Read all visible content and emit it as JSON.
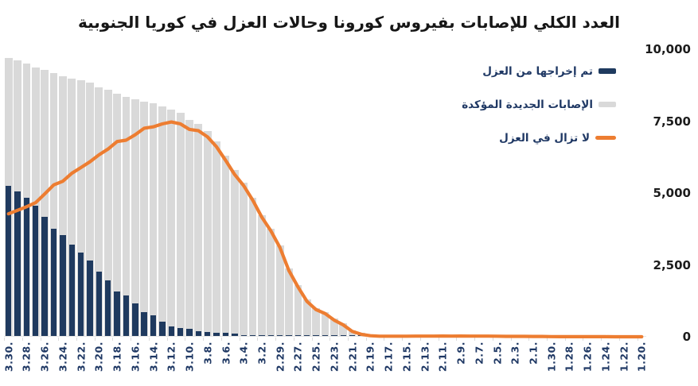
{
  "chart_data": {
    "type": "bar",
    "combo_note": "overlapped cumulative bars + line, x axis runs newest (left) to oldest (right)",
    "title": "العدد الكلي للإصابات بفيروس كورونا وحالات العزل في كوريا الجنوبية",
    "xlabel": "",
    "ylabel": "",
    "ylim": [
      0,
      10000
    ],
    "grid": false,
    "legend_position": "top-right",
    "xtick_every": 2,
    "yticks": [
      {
        "label": "10,000",
        "value": 10000
      },
      {
        "label": "7,500",
        "value": 7500
      },
      {
        "label": "5,000",
        "value": 5000
      },
      {
        "label": "2,500",
        "value": 2500
      },
      {
        "label": "0",
        "value": 0
      }
    ],
    "x": [
      "3.30.",
      "3.29.",
      "3.28.",
      "3.27.",
      "3.26.",
      "3.25.",
      "3.24.",
      "3.23.",
      "3.22.",
      "3.21.",
      "3.20.",
      "3.19.",
      "3.18.",
      "3.17.",
      "3.16.",
      "3.15.",
      "3.14.",
      "3.13.",
      "3.12.",
      "3.11.",
      "3.10.",
      "3.9.",
      "3.8.",
      "3.7.",
      "3.6.",
      "3.5.",
      "3.4.",
      "3.3.",
      "3.2.",
      "3.1.",
      "2.29.",
      "2.28.",
      "2.27.",
      "2.26.",
      "2.25.",
      "2.24.",
      "2.23.",
      "2.22.",
      "2.21.",
      "2.20.",
      "2.19.",
      "2.18.",
      "2.17.",
      "2.16.",
      "2.15.",
      "2.14.",
      "2.13.",
      "2.12.",
      "2.11.",
      "2.10.",
      "2.9.",
      "2.8.",
      "2.7.",
      "2.6.",
      "2.5.",
      "2.4.",
      "2.3.",
      "2.2.",
      "2.1.",
      "1.31.",
      "1.30.",
      "1.29.",
      "1.28.",
      "1.27.",
      "1.26.",
      "1.25.",
      "1.24.",
      "1.23.",
      "1.22.",
      "1.21.",
      "1.20."
    ],
    "series": [
      {
        "name": "تم إخراجها من العزل",
        "type": "bar",
        "color": "#1f3a5f",
        "values": [
          5228,
          5033,
          4811,
          4528,
          4144,
          3730,
          3507,
          3166,
          2909,
          2612,
          2233,
          1947,
          1540,
          1401,
          1137,
          834,
          714,
          510,
          333,
          288,
          247,
          166,
          130,
          118,
          108,
          88,
          41,
          34,
          31,
          30,
          27,
          22,
          22,
          22,
          22,
          18,
          18,
          16,
          16,
          16,
          16,
          12,
          12,
          9,
          9,
          7,
          7,
          7,
          4,
          4,
          3,
          2,
          2,
          1,
          1,
          1,
          1,
          0,
          0,
          0,
          0,
          0,
          0,
          0,
          0,
          0,
          0,
          0,
          0,
          0,
          0
        ]
      },
      {
        "name": "الإصابات الجديدة المؤكدة",
        "type": "bar",
        "color": "#d9d9d9",
        "values": [
          9661,
          9583,
          9478,
          9332,
          9241,
          9137,
          9037,
          8961,
          8897,
          8799,
          8652,
          8565,
          8413,
          8320,
          8236,
          8162,
          8086,
          7979,
          7869,
          7755,
          7513,
          7382,
          7134,
          6767,
          6284,
          5766,
          5328,
          4812,
          4212,
          3736,
          3150,
          2337,
          1766,
          1261,
          977,
          833,
          602,
          433,
          204,
          104,
          51,
          31,
          30,
          29,
          28,
          28,
          28,
          28,
          28,
          27,
          27,
          24,
          24,
          23,
          19,
          16,
          15,
          15,
          12,
          11,
          6,
          4,
          4,
          4,
          3,
          2,
          2,
          1,
          1,
          1,
          1
        ]
      },
      {
        "name": "لا تزال في العزل",
        "type": "line",
        "color": "#ed7d31",
        "values": [
          4275,
          4398,
          4523,
          4665,
          4966,
          5281,
          5410,
          5684,
          5884,
          6085,
          6325,
          6527,
          6789,
          6838,
          7024,
          7253,
          7300,
          7403,
          7470,
          7407,
          7212,
          7165,
          6954,
          6605,
          6134,
          5643,
          5255,
          4750,
          4159,
          3685,
          3106,
          2302,
          1731,
          1227,
          945,
          807,
          578,
          415,
          186,
          87,
          35,
          19,
          18,
          20,
          19,
          21,
          21,
          21,
          24,
          23,
          24,
          22,
          22,
          22,
          18,
          15,
          14,
          15,
          12,
          11,
          6,
          4,
          4,
          4,
          3,
          2,
          2,
          1,
          1,
          1,
          1
        ]
      }
    ]
  }
}
